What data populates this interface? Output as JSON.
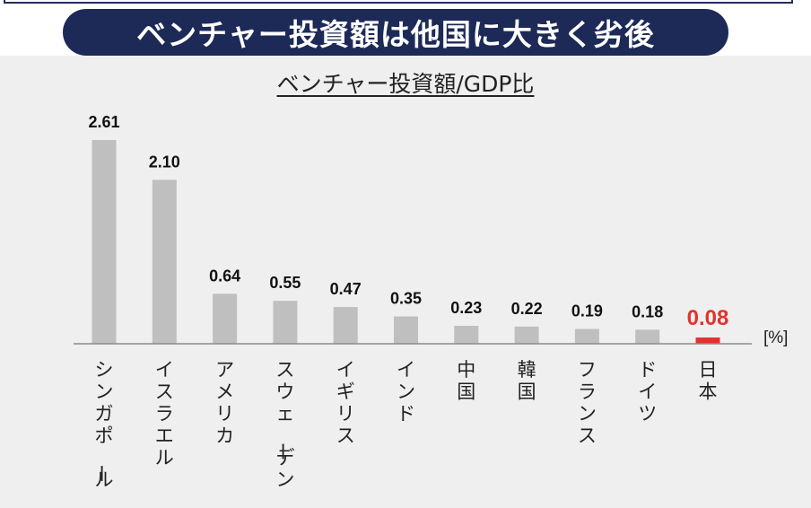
{
  "headline": "ベンチャー投資額は他国に大きく劣後",
  "chart_data": {
    "type": "bar",
    "title": "ベンチャー投資額/GDP比",
    "unit_label": "[%]",
    "categories": [
      "シンガポール",
      "イスラエル",
      "アメリカ",
      "スウェーデン",
      "イギリス",
      "インド",
      "中国",
      "韓国",
      "フランス",
      "ドイツ",
      "日本"
    ],
    "values": [
      2.61,
      2.1,
      0.64,
      0.55,
      0.47,
      0.35,
      0.23,
      0.22,
      0.19,
      0.18,
      0.08
    ],
    "value_labels": [
      "2.61",
      "2.10",
      "0.64",
      "0.55",
      "0.47",
      "0.35",
      "0.23",
      "0.22",
      "0.19",
      "0.18",
      "0.08"
    ],
    "highlight_index": 10,
    "colors": {
      "bar": "#bfbfbf",
      "highlight": "#e0342b",
      "axis": "#8c8c8c",
      "banner": "#1d2a57",
      "text": "#111111"
    },
    "ylim": [
      0,
      2.61
    ],
    "grid": false
  }
}
